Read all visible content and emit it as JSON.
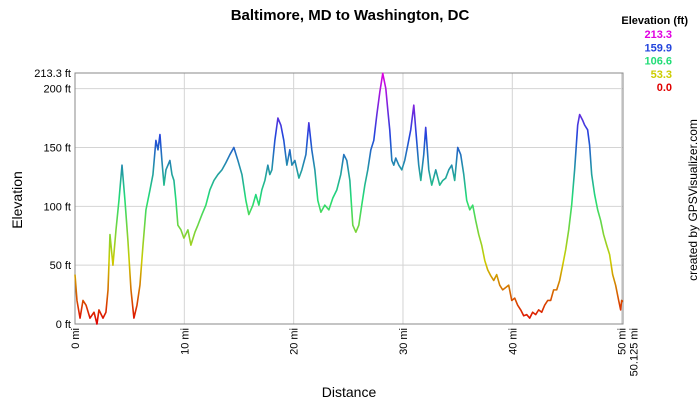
{
  "chart_data": {
    "type": "line",
    "title": "Baltimore, MD to Washington, DC",
    "xlabel": "Distance",
    "ylabel": "Elevation",
    "credit": "created by GPSVisualizer.com",
    "x": [
      0,
      0.18,
      0.46,
      0.73,
      1.01,
      1.37,
      1.74,
      2.01,
      2.19,
      2.56,
      2.83,
      3.02,
      3.2,
      3.47,
      3.75,
      4.02,
      4.3,
      4.57,
      4.84,
      5.12,
      5.39,
      5.67,
      5.94,
      6.22,
      6.49,
      6.86,
      7.13,
      7.4,
      7.59,
      7.77,
      7.95,
      8.14,
      8.32,
      8.5,
      8.68,
      8.87,
      9.05,
      9.23,
      9.41,
      9.69,
      9.96,
      10.33,
      10.6,
      10.97,
      11.24,
      11.61,
      11.97,
      12.34,
      12.71,
      13.07,
      13.44,
      13.8,
      14.17,
      14.53,
      14.9,
      15.27,
      15.63,
      15.9,
      16.27,
      16.54,
      16.82,
      17.09,
      17.37,
      17.64,
      17.82,
      18.01,
      18.28,
      18.56,
      18.83,
      19.1,
      19.38,
      19.65,
      19.84,
      20.11,
      20.48,
      20.75,
      21.12,
      21.39,
      21.66,
      21.94,
      22.21,
      22.49,
      22.85,
      23.22,
      23.58,
      23.95,
      24.31,
      24.59,
      24.86,
      25.14,
      25.41,
      25.69,
      25.96,
      26.23,
      26.51,
      26.78,
      27.06,
      27.33,
      27.61,
      27.88,
      28.15,
      28.43,
      28.61,
      28.79,
      28.98,
      29.16,
      29.34,
      29.62,
      29.89,
      30.16,
      30.44,
      30.71,
      30.99,
      31.17,
      31.44,
      31.63,
      31.9,
      32.08,
      32.36,
      32.63,
      33,
      33.36,
      33.64,
      33.91,
      34.19,
      34.46,
      34.73,
      35.01,
      35.28,
      35.56,
      35.83,
      36.11,
      36.38,
      36.65,
      36.93,
      37.2,
      37.48,
      37.75,
      38.03,
      38.3,
      38.57,
      38.85,
      39.12,
      39.4,
      39.67,
      39.95,
      40.22,
      40.49,
      40.77,
      41.04,
      41.32,
      41.59,
      41.86,
      42.14,
      42.41,
      42.69,
      42.96,
      43.24,
      43.51,
      43.78,
      44.06,
      44.33,
      44.61,
      44.88,
      45.16,
      45.43,
      45.7,
      45.98,
      46.16,
      46.44,
      46.62,
      46.89,
      47.07,
      47.26,
      47.53,
      47.81,
      48.08,
      48.35,
      48.63,
      48.9,
      49.18,
      49.45,
      49.73,
      49.91,
      50,
      50.125
    ],
    "values": [
      42,
      20,
      5,
      20,
      16,
      5,
      10,
      0,
      12,
      5,
      10,
      29,
      76,
      50,
      80,
      105,
      135,
      105,
      71,
      29,
      5,
      16,
      33,
      67,
      97,
      114,
      127,
      156,
      148,
      161,
      139,
      118,
      131,
      135,
      139,
      127,
      122,
      105,
      84,
      80,
      73,
      80,
      67,
      78,
      84,
      93,
      101,
      114,
      122,
      127,
      131,
      137,
      144,
      150,
      139,
      127,
      105,
      93,
      101,
      110,
      101,
      114,
      122,
      135,
      127,
      131,
      156,
      175,
      169,
      156,
      135,
      148,
      135,
      139,
      124,
      131,
      144,
      171,
      148,
      131,
      105,
      95,
      101,
      97,
      107,
      114,
      127,
      144,
      139,
      122,
      84,
      78,
      84,
      101,
      118,
      131,
      148,
      156,
      178,
      197,
      213,
      200,
      182,
      165,
      139,
      135,
      141,
      135,
      131,
      139,
      152,
      165,
      186,
      165,
      135,
      122,
      144,
      167,
      131,
      118,
      131,
      118,
      122,
      124,
      131,
      135,
      122,
      150,
      144,
      127,
      105,
      97,
      101,
      88,
      76,
      67,
      54,
      46,
      41,
      37,
      42,
      33,
      29,
      31,
      33,
      20,
      22,
      16,
      12,
      7,
      8,
      5,
      10,
      8,
      12,
      10,
      16,
      20,
      20,
      29,
      29,
      37,
      50,
      63,
      80,
      101,
      131,
      169,
      178,
      173,
      169,
      165,
      152,
      127,
      110,
      97,
      88,
      76,
      67,
      59,
      42,
      33,
      20,
      12,
      20,
      19
    ],
    "xlim": [
      0,
      50.125
    ],
    "ylim": [
      0,
      213.3
    ],
    "xticks": [
      {
        "value": 0,
        "label": "0 mi"
      },
      {
        "value": 10,
        "label": "10 mi"
      },
      {
        "value": 20,
        "label": "20 mi"
      },
      {
        "value": 30,
        "label": "30 mi"
      },
      {
        "value": 40,
        "label": "40 mi"
      },
      {
        "value": 50,
        "label": "50 mi"
      },
      {
        "value": 50.125,
        "label": "50.125 mi"
      }
    ],
    "yticks": [
      {
        "value": 0,
        "label": "0 ft"
      },
      {
        "value": 50,
        "label": "50 ft"
      },
      {
        "value": 100,
        "label": "100 ft"
      },
      {
        "value": 150,
        "label": "150 ft"
      },
      {
        "value": 200,
        "label": "200 ft"
      },
      {
        "value": 213.3,
        "label": "213.3 ft"
      }
    ],
    "grid": true,
    "legend": {
      "title": "Elevation (ft)",
      "levels": [
        {
          "value": 213.3,
          "color": "#e000e0"
        },
        {
          "value": 159.9,
          "color": "#2244dd"
        },
        {
          "value": 106.6,
          "color": "#22dd77"
        },
        {
          "value": 53.3,
          "color": "#cccc00"
        },
        {
          "value": 0,
          "label": "0.0",
          "color": "#e00000"
        }
      ]
    }
  }
}
